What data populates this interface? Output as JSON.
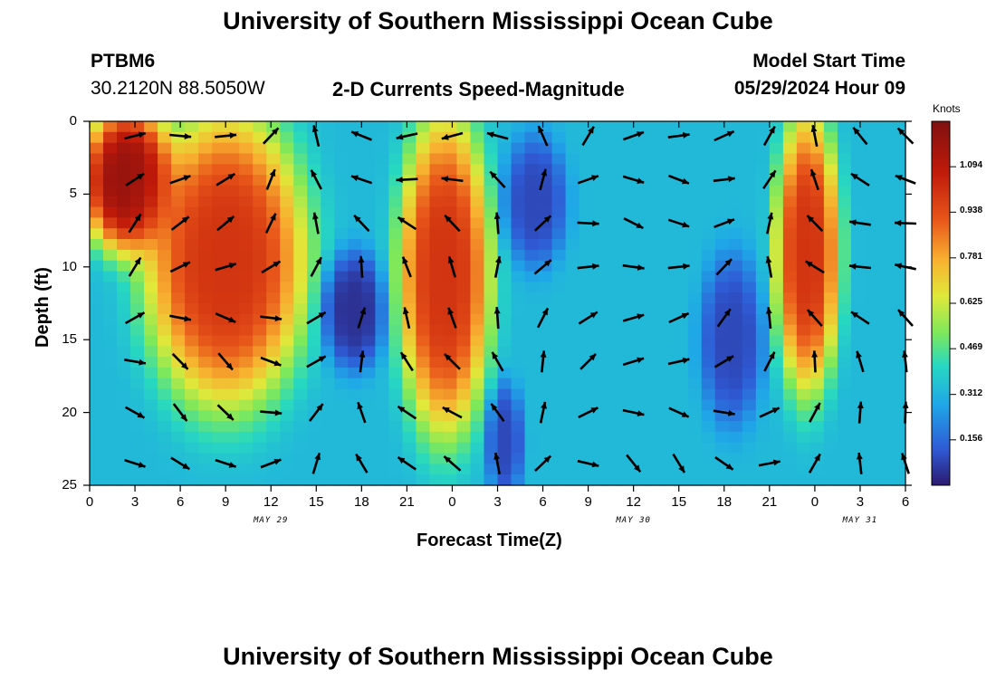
{
  "titles": {
    "main": "University of Southern Mississippi Ocean Cube",
    "bottom": "University of Southern Mississippi Ocean Cube"
  },
  "station": {
    "id": "PTBM6",
    "coords": "30.2120N  88.5050W"
  },
  "model": {
    "label": "Model Start Time",
    "time": "05/29/2024 Hour 09"
  },
  "colorbar": {
    "units": "Knots",
    "ticks": [
      "1.094",
      "0.938",
      "0.781",
      "0.625",
      "0.469",
      "0.312",
      "0.156"
    ],
    "colors": [
      "#2b1a6e",
      "#2f5bd6",
      "#1fa6e8",
      "#27d8c0",
      "#7fe85a",
      "#e0e83a",
      "#f8b030",
      "#e8561a",
      "#c01a0a",
      "#801010"
    ]
  },
  "chart_data": {
    "type": "heatmap",
    "title": "2-D Currents Speed-Magnitude",
    "xlabel": "Forecast Time(Z)",
    "ylabel": "Depth (ft)",
    "x_ticks": [
      "0",
      "3",
      "6",
      "9",
      "12",
      "15",
      "18",
      "21",
      "0",
      "3",
      "6",
      "9",
      "12",
      "15",
      "18",
      "21",
      "0",
      "3",
      "6"
    ],
    "x_hours": [
      0,
      3,
      6,
      9,
      12,
      15,
      18,
      21,
      24,
      27,
      30,
      33,
      36,
      39,
      42,
      45,
      48,
      51,
      54
    ],
    "y_ticks": [
      "0",
      "5",
      "10",
      "15",
      "20",
      "25"
    ],
    "y_values": [
      0,
      5,
      10,
      15,
      20,
      25
    ],
    "date_labels": [
      {
        "text": "MAY 29",
        "hour": 12
      },
      {
        "text": "MAY 30",
        "hour": 36
      },
      {
        "text": "MAY 31",
        "hour": 51
      }
    ],
    "xlim": [
      0,
      54
    ],
    "ylim": [
      0,
      25
    ],
    "zrange": [
      0,
      1.25
    ],
    "units": "Knots",
    "speed_regions_knots": [
      {
        "hours": [
          0,
          5
        ],
        "depth_ft": [
          0,
          8
        ],
        "speed": 1.2
      },
      {
        "hours": [
          4,
          14
        ],
        "depth_ft": [
          0,
          19
        ],
        "speed": 1.05
      },
      {
        "hours": [
          16,
          19
        ],
        "depth_ft": [
          10,
          16
        ],
        "speed": 0.05
      },
      {
        "hours": [
          21,
          26
        ],
        "depth_ft": [
          0,
          21
        ],
        "speed": 1.05
      },
      {
        "hours": [
          28,
          31
        ],
        "depth_ft": [
          2,
          9
        ],
        "speed": 0.1
      },
      {
        "hours": [
          27,
          28
        ],
        "depth_ft": [
          19,
          25
        ],
        "speed": 0.1
      },
      {
        "hours": [
          41,
          44
        ],
        "depth_ft": [
          10,
          20
        ],
        "speed": 0.1
      },
      {
        "hours": [
          46,
          49
        ],
        "depth_ft": [
          0,
          18
        ],
        "speed": 1.05
      }
    ]
  }
}
